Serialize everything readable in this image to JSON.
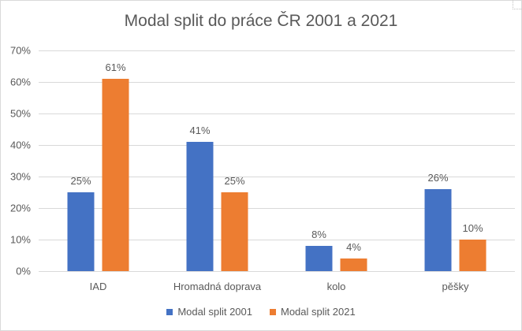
{
  "chart_data": {
    "type": "bar",
    "title": "Modal split do práce ČR 2001 a 2021",
    "categories": [
      "IAD",
      "Hromadná doprava",
      "kolo",
      "pěšky"
    ],
    "series": [
      {
        "name": "Modal split 2001",
        "values": [
          25,
          41,
          8,
          26
        ],
        "labels": [
          "25%",
          "41%",
          "8%",
          "26%"
        ],
        "color": "#4472C4"
      },
      {
        "name": "Modal split 2021",
        "values": [
          61,
          25,
          4,
          10
        ],
        "labels": [
          "61%",
          "25%",
          "4%",
          "10%"
        ],
        "color": "#ED7D31"
      }
    ],
    "ylim": [
      0,
      70
    ],
    "yticks": [
      0,
      10,
      20,
      30,
      40,
      50,
      60,
      70
    ],
    "ytick_labels": [
      "0%",
      "10%",
      "20%",
      "30%",
      "40%",
      "50%",
      "60%",
      "70%"
    ],
    "grid": true,
    "legend": "bottom",
    "xlabel": "",
    "ylabel": ""
  },
  "colors": {
    "grid": "#d9d9d9",
    "text": "#595959"
  }
}
